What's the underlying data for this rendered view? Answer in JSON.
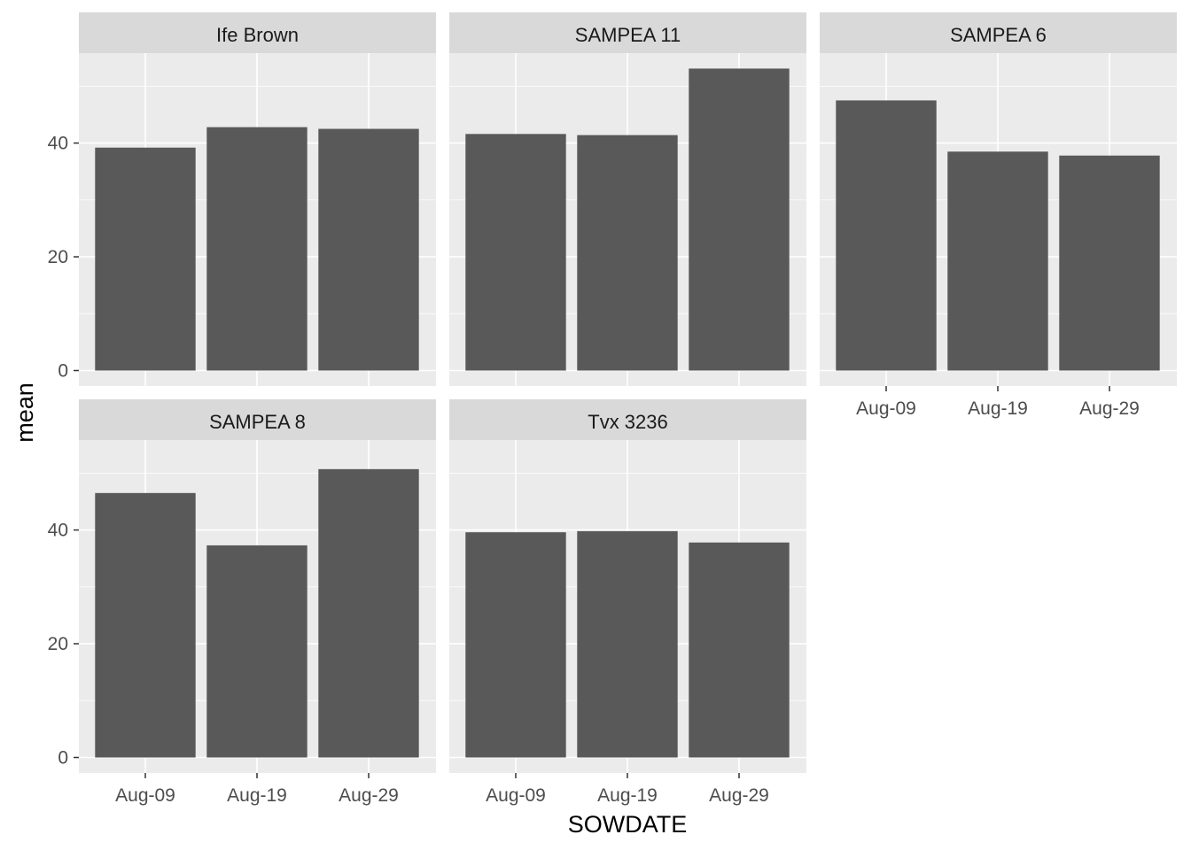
{
  "chart_data": {
    "type": "bar",
    "facet_layout": "wrap-3-columns",
    "xlabel": "SOWDATE",
    "ylabel": "mean",
    "categories": [
      "Aug-09",
      "Aug-19",
      "Aug-29"
    ],
    "yticks": [
      0,
      20,
      40
    ],
    "ylim": [
      0,
      55.5
    ],
    "grid": true,
    "colors": {
      "bar": "#595959",
      "panel": "#ebebeb",
      "strip": "#d9d9d9",
      "grid": "#ffffff"
    },
    "panels": [
      {
        "title": "Ife Brown",
        "values": [
          39.2,
          42.8,
          42.5
        ]
      },
      {
        "title": "SAMPEA 11",
        "values": [
          41.6,
          41.4,
          53.1
        ]
      },
      {
        "title": "SAMPEA 6",
        "values": [
          47.5,
          38.5,
          37.8
        ]
      },
      {
        "title": "SAMPEA 8",
        "values": [
          46.5,
          37.3,
          50.7
        ]
      },
      {
        "title": "Tvx 3236",
        "values": [
          39.6,
          39.8,
          37.8
        ]
      }
    ]
  }
}
